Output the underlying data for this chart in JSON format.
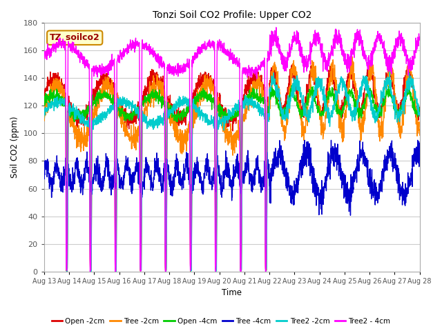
{
  "title": "Tonzi Soil CO2 Profile: Upper CO2",
  "ylabel": "Soil CO2 (ppm)",
  "xlabel": "Time",
  "legend_label": "TZ_soilco2",
  "ylim": [
    0,
    180
  ],
  "series_colors": {
    "Open -2cm": "#dd0000",
    "Tree -2cm": "#ff8800",
    "Open -4cm": "#00cc00",
    "Tree -4cm": "#0000cc",
    "Tree2 -2cm": "#00cccc",
    "Tree2 - 4cm": "#ff00ff"
  },
  "n_days": 15,
  "start_day": 13,
  "bg_color": "#ffffff",
  "grid_color": "#cccccc",
  "legend_box_color": "#ffffcc",
  "legend_box_edge": "#cc8800",
  "figsize": [
    6.4,
    4.8
  ],
  "dpi": 100
}
